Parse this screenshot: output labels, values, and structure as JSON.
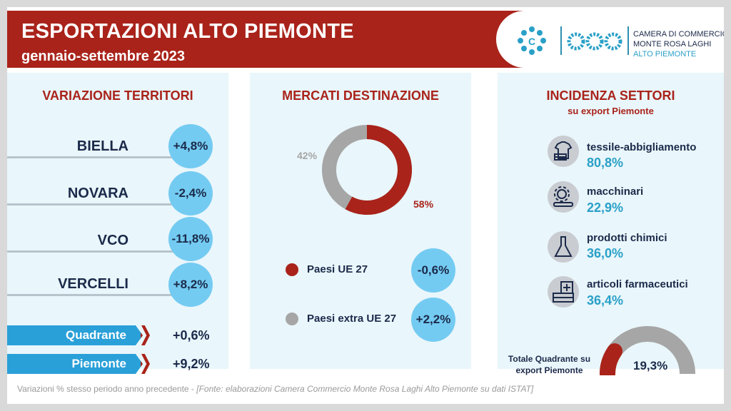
{
  "header": {
    "title": "ESPORTAZIONI ALTO PIEMONTE",
    "subtitle": "gennaio-settembre 2023",
    "logo_line1": "CAMERA DI COMMERCIO",
    "logo_line2": "MONTE ROSA LAGHI",
    "logo_line3": "ALTO PIEMONTE"
  },
  "territori": {
    "title": "VARIAZIONE TERRITORI",
    "items": [
      {
        "name": "BIELLA",
        "value": "+4,8%"
      },
      {
        "name": "NOVARA",
        "value": "-2,4%"
      },
      {
        "name": "VCO",
        "value": "-11,8%"
      },
      {
        "name": "VERCELLI",
        "value": "+8,2%"
      }
    ],
    "totals": [
      {
        "label": "Quadrante",
        "value": "+0,6%"
      },
      {
        "label": "Piemonte",
        "value": "+9,2%"
      }
    ]
  },
  "mercati": {
    "title": "MERCATI DESTINAZIONE",
    "donut": {
      "ue_share": 58,
      "extra_share": 42,
      "ue_label": "58%",
      "extra_label": "42%"
    },
    "legend": [
      {
        "label": "Paesi UE 27",
        "value": "-0,6%",
        "color": "#a9231a"
      },
      {
        "label": "Paesi extra UE 27",
        "value": "+2,2%",
        "color": "#a6a6a6"
      }
    ]
  },
  "settori": {
    "title": "INCIDENZA SETTORI",
    "subtitle": "su export Piemonte",
    "items": [
      {
        "name": "tessile-abbigliamento",
        "value": "80,8%",
        "icon": "clothes-icon"
      },
      {
        "name": "macchinari",
        "value": "22,9%",
        "icon": "machinery-gear-icon"
      },
      {
        "name": "prodotti chimici",
        "value": "36,0%",
        "icon": "flask-icon"
      },
      {
        "name": "articoli farmaceutici",
        "value": "36,4%",
        "icon": "pharmacy-icon"
      }
    ],
    "total_label": "Totale Quadrante su export Piemonte",
    "total_value": "19,3%",
    "total_share": 19.3
  },
  "footer": {
    "text": "Variazioni % stesso periodo anno precedente - ",
    "source": "[Fonte: elaborazioni Camera Commercio Monte Rosa Laghi Alto Piemonte su dati ISTAT]"
  },
  "colors": {
    "red": "#a9231a",
    "blue": "#2aa0d8",
    "bubble": "#74cbf2",
    "gray": "#a6a6a6",
    "panel": "#e9f6fb"
  }
}
